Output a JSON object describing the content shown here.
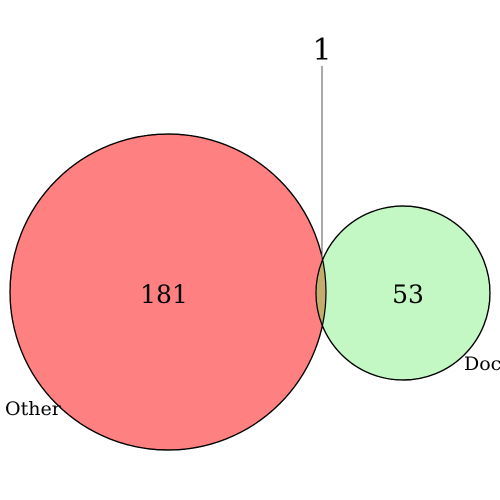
{
  "venn": {
    "sets": [
      {
        "name": "Other",
        "count": "181",
        "color": "#ff8080"
      },
      {
        "name": "Doc",
        "count": "53",
        "color": "#c3f7c3"
      }
    ],
    "intersection": {
      "count": "1",
      "color": "#c2ac6e"
    }
  }
}
